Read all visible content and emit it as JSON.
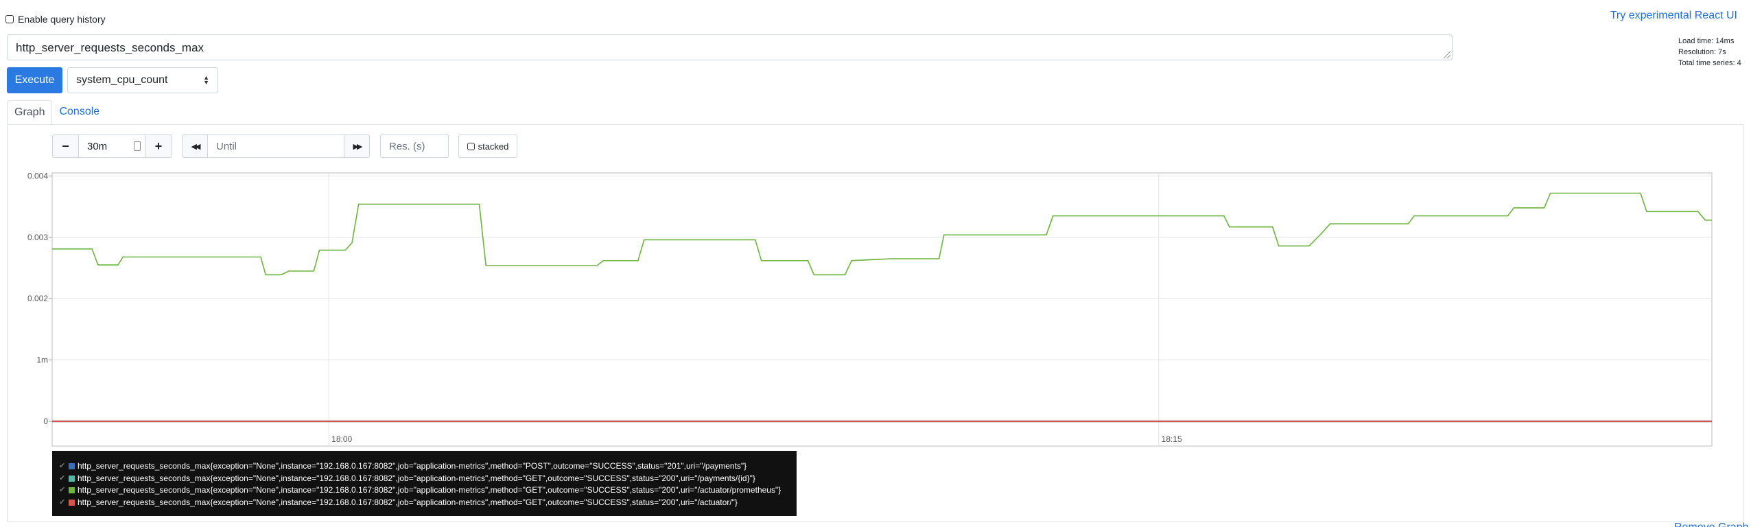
{
  "header": {
    "history_label": "Enable query history",
    "react_link": "Try experimental React UI"
  },
  "query": {
    "expression": "http_server_requests_seconds_max",
    "execute_label": "Execute",
    "metric_selected": "system_cpu_count"
  },
  "stats": {
    "load_time": "Load time: 14ms",
    "resolution": "Resolution: 7s",
    "total_series": "Total time series: 4"
  },
  "tabs": [
    {
      "label": "Graph",
      "active": true
    },
    {
      "label": "Console",
      "active": false
    }
  ],
  "controls": {
    "minus_label": "−",
    "range_value": "30m",
    "plus_label": "+",
    "back_label": "◀◀",
    "until_placeholder": "Until",
    "forward_label": "▶▶",
    "res_placeholder": "Res. (s)",
    "stacked_label": "stacked"
  },
  "chart_data": {
    "type": "line",
    "y_ticks": [
      {
        "label": "0",
        "value": 0
      },
      {
        "label": "1m",
        "value": 0.001
      },
      {
        "label": "0.002",
        "value": 0.002
      },
      {
        "label": "0.003",
        "value": 0.003
      },
      {
        "label": "0.004",
        "value": 0.004
      }
    ],
    "ylim": [
      0,
      0.00405
    ],
    "x_ticks": [
      {
        "label": "18:00",
        "minute": 5
      },
      {
        "label": "18:15",
        "minute": 20
      }
    ],
    "xlim_minutes": [
      0,
      30
    ],
    "grid": true,
    "series": [
      {
        "name": "http_server_requests_seconds_max{exception=\"None\",instance=\"192.168.0.167:8082\",job=\"application-metrics\",method=\"POST\",outcome=\"SUCCESS\",status=\"201\",uri=\"/payments\"}",
        "color": "#3b6fb5",
        "points": [
          [
            0,
            0
          ],
          [
            30,
            0
          ]
        ]
      },
      {
        "name": "http_server_requests_seconds_max{exception=\"None\",instance=\"192.168.0.167:8082\",job=\"application-metrics\",method=\"GET\",outcome=\"SUCCESS\",status=\"200\",uri=\"/payments/{id}\"}",
        "color": "#5cb3a8",
        "points": [
          [
            0,
            0
          ],
          [
            30,
            0
          ]
        ]
      },
      {
        "name": "http_server_requests_seconds_max{exception=\"None\",instance=\"192.168.0.167:8082\",job=\"application-metrics\",method=\"GET\",outcome=\"SUCCESS\",status=\"200\",uri=\"/actuator/prometheus\"}",
        "color": "#6db33f",
        "points": [
          [
            0.0,
            0.00281
          ],
          [
            0.72,
            0.00281
          ],
          [
            0.83,
            0.00255
          ],
          [
            1.19,
            0.00255
          ],
          [
            1.28,
            0.00268
          ],
          [
            3.77,
            0.00268
          ],
          [
            3.86,
            0.00239
          ],
          [
            4.14,
            0.00239
          ],
          [
            4.28,
            0.00245
          ],
          [
            4.73,
            0.00245
          ],
          [
            4.83,
            0.00279
          ],
          [
            5.3,
            0.00279
          ],
          [
            5.42,
            0.00291
          ],
          [
            5.54,
            0.00354
          ],
          [
            7.72,
            0.00354
          ],
          [
            7.84,
            0.00254
          ],
          [
            9.85,
            0.00254
          ],
          [
            9.96,
            0.00262
          ],
          [
            10.59,
            0.00262
          ],
          [
            10.7,
            0.00296
          ],
          [
            12.71,
            0.00296
          ],
          [
            12.82,
            0.00262
          ],
          [
            13.66,
            0.00262
          ],
          [
            13.77,
            0.00239
          ],
          [
            14.33,
            0.00239
          ],
          [
            14.45,
            0.00262
          ],
          [
            15.17,
            0.00265
          ],
          [
            16.03,
            0.00265
          ],
          [
            16.12,
            0.00304
          ],
          [
            17.97,
            0.00304
          ],
          [
            18.09,
            0.00335
          ],
          [
            21.18,
            0.00335
          ],
          [
            21.28,
            0.00317
          ],
          [
            22.06,
            0.00317
          ],
          [
            22.17,
            0.00286
          ],
          [
            22.72,
            0.00286
          ],
          [
            22.94,
            0.00306
          ],
          [
            23.1,
            0.00322
          ],
          [
            24.51,
            0.00322
          ],
          [
            24.62,
            0.00335
          ],
          [
            26.31,
            0.00335
          ],
          [
            26.42,
            0.00348
          ],
          [
            26.97,
            0.00348
          ],
          [
            27.08,
            0.00372
          ],
          [
            28.71,
            0.00372
          ],
          [
            28.82,
            0.00342
          ],
          [
            29.75,
            0.00342
          ],
          [
            29.88,
            0.00328
          ],
          [
            30.0,
            0.00328
          ]
        ]
      },
      {
        "name": "http_server_requests_seconds_max{exception=\"None\",instance=\"192.168.0.167:8082\",job=\"application-metrics\",method=\"GET\",outcome=\"SUCCESS\",status=\"200\",uri=\"/actuator/\"}",
        "color": "#d9534f",
        "points": [
          [
            0,
            0
          ],
          [
            30,
            0
          ]
        ]
      }
    ]
  },
  "legend": {
    "check_glyph": "✔"
  },
  "footer": {
    "remove_graph": "Remove Graph"
  }
}
